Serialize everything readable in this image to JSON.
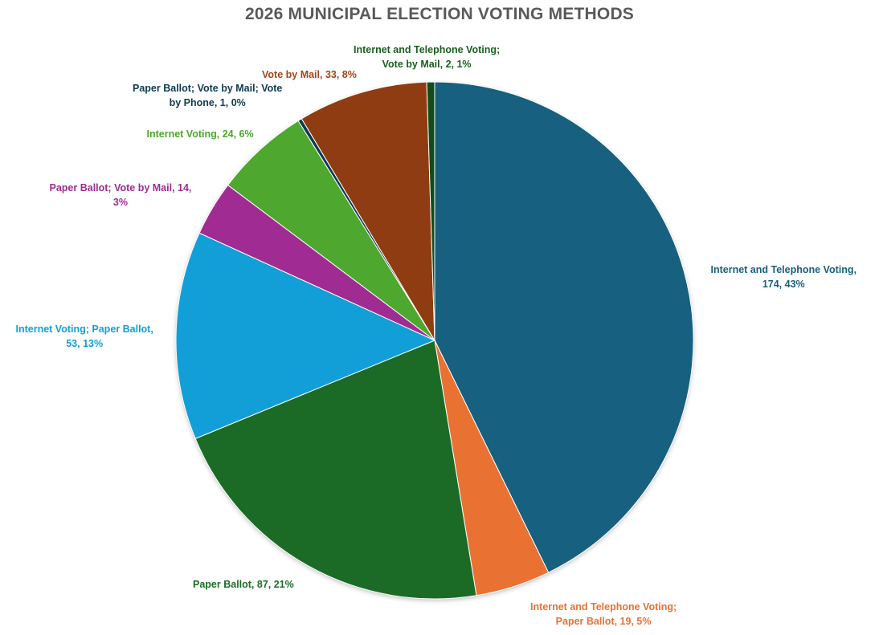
{
  "chart_data": {
    "type": "pie",
    "title": "2026 MUNICIPAL ELECTION VOTING METHODS",
    "slices": [
      {
        "name": "Internet and Telephone Voting",
        "value": 174,
        "percent": "43%",
        "color": "#17607F",
        "label_lines": [
          "Internet and Telephone Voting,",
          "174, 43%"
        ]
      },
      {
        "name": "Internet and Telephone Voting; Paper Ballot",
        "value": 19,
        "percent": "5%",
        "color": "#E97132",
        "label_lines": [
          "Internet and Telephone Voting;",
          "Paper Ballot, 19, 5%"
        ]
      },
      {
        "name": "Paper Ballot",
        "value": 87,
        "percent": "21%",
        "color": "#1B6B27",
        "label_lines": [
          "Paper Ballot, 87, 21%"
        ]
      },
      {
        "name": "Internet Voting; Paper Ballot",
        "value": 53,
        "percent": "13%",
        "color": "#129FD8",
        "label_lines": [
          "Internet Voting; Paper Ballot,",
          "53, 13%"
        ]
      },
      {
        "name": "Paper Ballot; Vote by Mail",
        "value": 14,
        "percent": "3%",
        "color": "#A02B93",
        "label_lines": [
          "Paper Ballot; Vote by Mail, 14,",
          "3%"
        ]
      },
      {
        "name": "Internet Voting",
        "value": 24,
        "percent": "6%",
        "color": "#4EA72E",
        "label_lines": [
          "Internet Voting, 24, 6%"
        ]
      },
      {
        "name": "Paper Ballot; Vote by Mail; Vote by Phone",
        "value": 1,
        "percent": "0%",
        "color": "#0E3A52",
        "label_lines": [
          "Paper Ballot; Vote by Mail; Vote",
          "by Phone, 1, 0%"
        ]
      },
      {
        "name": "Vote by Mail",
        "value": 33,
        "percent": "8%",
        "color": "#8F3C12",
        "label_lines": [
          "Vote by Mail, 33, 8%"
        ]
      },
      {
        "name": "Internet and Telephone Voting; Vote by Mail",
        "value": 2,
        "percent": "1%",
        "color": "#104C1C",
        "label_lines": [
          "Internet and Telephone Voting;",
          "Vote by Mail, 2, 1%"
        ]
      }
    ],
    "label_colors": [
      "#17607F",
      "#E97132",
      "#1B6B27",
      "#129FD8",
      "#A02B93",
      "#4EA72E",
      "#0E3A52",
      "#A0461A",
      "#1B5E20"
    ],
    "legend": "none"
  }
}
